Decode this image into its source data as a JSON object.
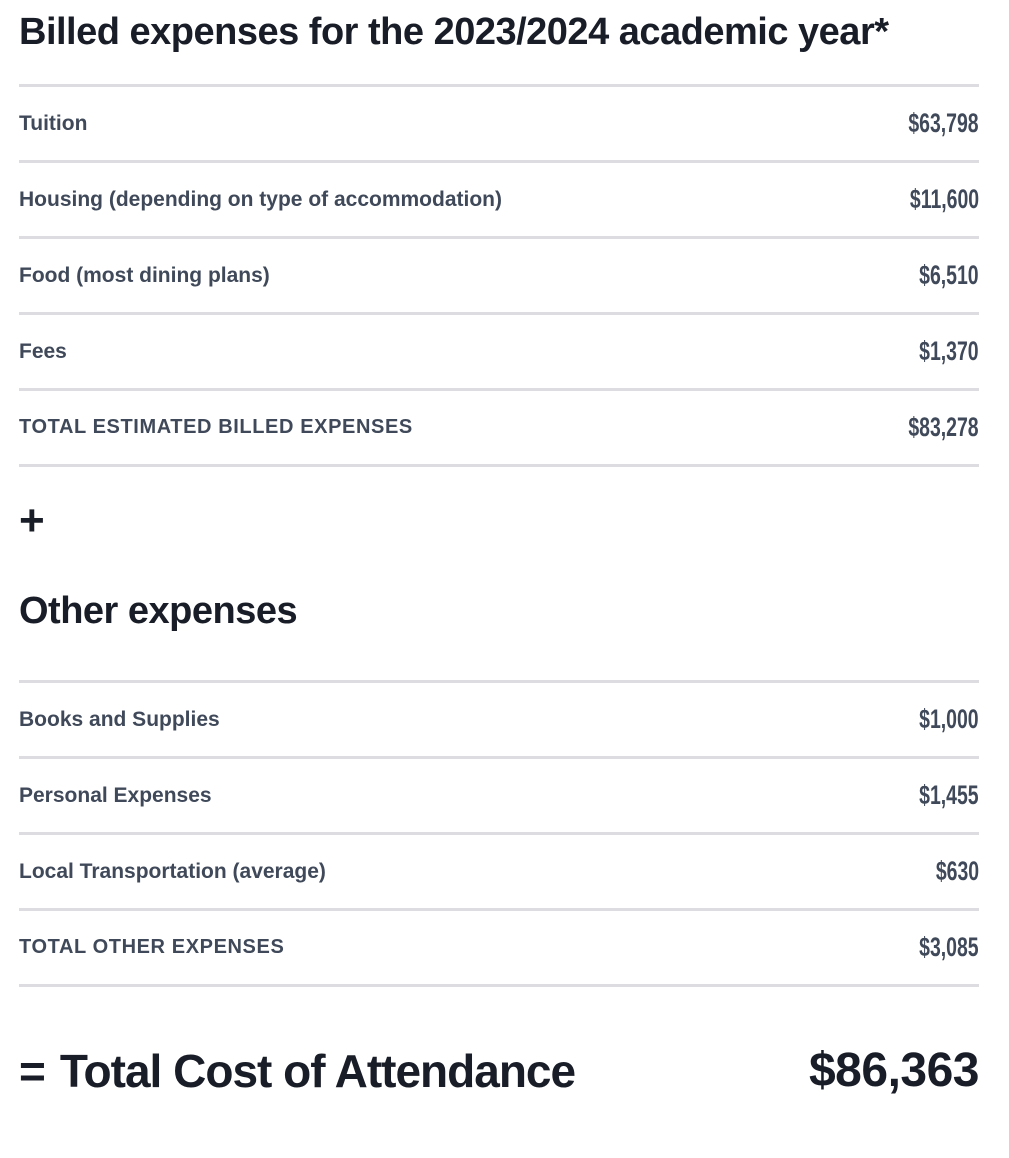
{
  "colors": {
    "background": "#ffffff",
    "heading_text": "#191d27",
    "row_text": "#3f4959",
    "divider": "#dcdce1"
  },
  "billed_section": {
    "title": "Billed expenses for the 2023/2024 academic year*",
    "rows": [
      {
        "label": "Tuition",
        "value": "$63,798"
      },
      {
        "label": "Housing (depending on type of accommodation)",
        "value": "$11,600"
      },
      {
        "label": "Food (most dining plans)",
        "value": "$6,510"
      },
      {
        "label": "Fees",
        "value": "$1,370"
      }
    ],
    "total": {
      "label": "TOTAL ESTIMATED BILLED EXPENSES",
      "value": "$83,278"
    }
  },
  "plus_sign": "+",
  "other_section": {
    "title": "Other expenses",
    "rows": [
      {
        "label": "Books and Supplies",
        "value": "$1,000"
      },
      {
        "label": "Personal Expenses",
        "value": "$1,455"
      },
      {
        "label": "Local Transportation (average)",
        "value": "$630"
      }
    ],
    "total": {
      "label": "TOTAL OTHER EXPENSES",
      "value": "$3,085"
    }
  },
  "grand_total": {
    "equals_sign": "=",
    "label": "Total Cost of Attendance",
    "value": "$86,363"
  }
}
